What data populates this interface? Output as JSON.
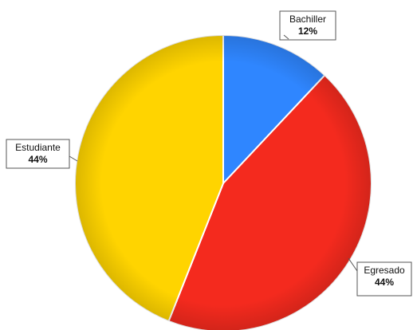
{
  "chart_data": {
    "type": "pie",
    "slices": [
      {
        "label": "Bachiller",
        "value_label": "12%",
        "value": 12,
        "color": "#2f86ff"
      },
      {
        "label": "Egresado",
        "value_label": "44%",
        "value": 44,
        "color": "#f42a1e"
      },
      {
        "label": "Estudiante",
        "value_label": "44%",
        "value": 44,
        "color": "#ffd400"
      }
    ],
    "start_angle": "12 o'clock",
    "direction": "clockwise",
    "legend": "none",
    "data_labels": "callouts outside pie"
  }
}
